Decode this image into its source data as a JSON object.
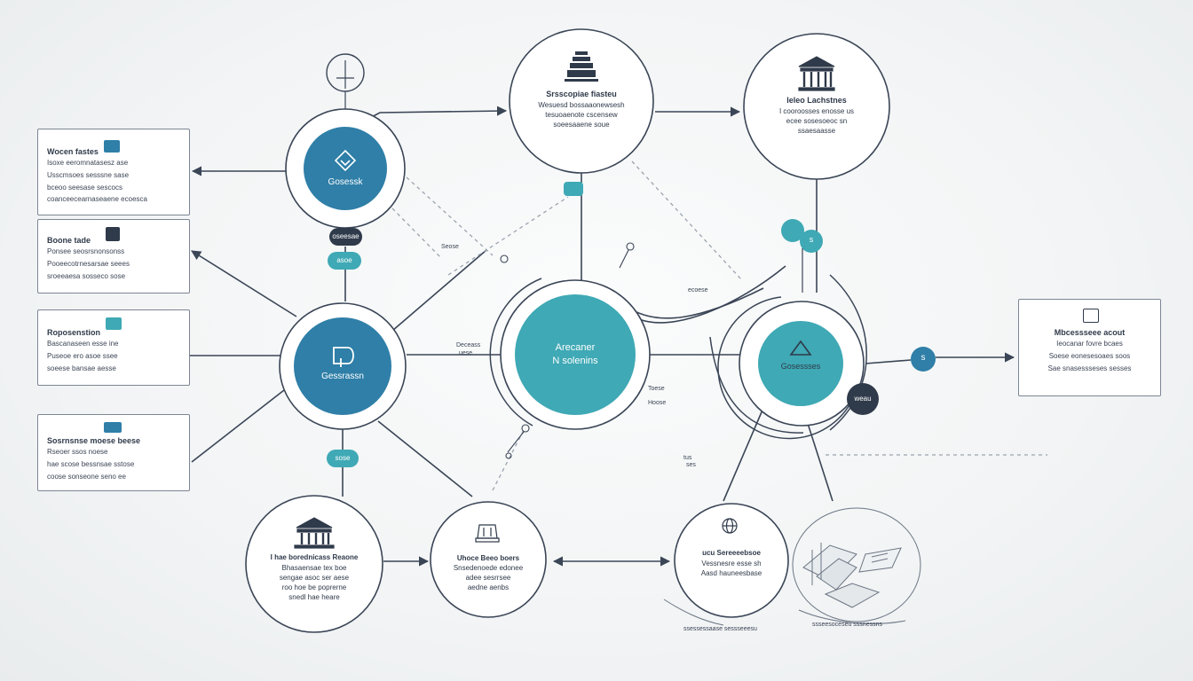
{
  "colors": {
    "navy": "#2f3a4a",
    "blue": "#2f7fa8",
    "teal": "#3fa9b5",
    "line": "#3a4556",
    "muted": "#9aa3ad"
  },
  "hubs": {
    "top_left": {
      "label": "Gosessk",
      "icon": "diamond-icon"
    },
    "mid_left": {
      "label": "Gessrassn",
      "icon": "document-icon"
    },
    "center": {
      "line1": "Arecaner",
      "line2": "N solenins"
    },
    "right": {
      "label": "Gosessses",
      "icon": "triangle-icon"
    }
  },
  "nodes": {
    "top_center": {
      "title": "Srsscopiae fiasteu",
      "line1": "Wesuesd bossaaonewsesh",
      "line2": "tesuoaenote cscensew",
      "line3": "soeesaaene soue",
      "icon": "tower-icon"
    },
    "top_right": {
      "title": "Ieleo Lachstnes",
      "line1": "I cooroosses enosse us",
      "line2": "ecee sosesoeoc sn",
      "line3": "ssaesaasse",
      "icon": "bank-icon"
    },
    "bottom_left": {
      "title": "I hae borednicass Reaone",
      "line1": "Bhasaensae tex boe",
      "line2": "sengae asoc ser aese",
      "line3": "roo hoe be poprerne",
      "line4": "snedl hae heare",
      "icon": "bank-icon"
    },
    "bottom_mid": {
      "title": "Uhoce Beeo boers",
      "line1": "Snsedenoede edonee",
      "line2": "adee sesrrsee",
      "line3": "aedne aenbs",
      "icon": "tower-icon"
    },
    "bottom_right": {
      "title": "ucu Sereeeebsoe",
      "line1": "Vessnesre esse sh",
      "line2": "Aasd hauneesbase",
      "icon": "globe-icon"
    }
  },
  "cards": {
    "left1": {
      "title": "Wocen fastes",
      "line1": "Isoxe eeromnatasesz ase",
      "line2": "Usscmsoes sesssne sase",
      "line3": "bceoo seesase sescocs",
      "line4": "coanceecearnaseaene ecoesca",
      "icon": "square"
    },
    "left2": {
      "title": "Boone tade",
      "line1": "Ponsee seosrsnonsonss",
      "line2": "Pooeecotrnesarsae seees",
      "line3": "sroeeaesa sosseco sose",
      "line4": "sonnasesroes sesssees",
      "icon": "building-icon"
    },
    "left3": {
      "title": "Roposenstion",
      "line1": "Bascanaseen esse ine",
      "line2": "Puseoe ero asoe ssee",
      "line3": "soeese bansae aesse",
      "line4": "scoee seoeso sesae bs",
      "icon": "square"
    },
    "left4": {
      "title": "Sosrnsnse moese beese",
      "line1": "Rseoer ssos noese",
      "line2": "hae scose bessnsae sstose",
      "line3": "coose sonseone seno ee",
      "icon": "square"
    },
    "right": {
      "title": "Mbcessseee acout",
      "line1": "Ieocanar fovre bcaes",
      "line2": "Soese eonesesoaes soos",
      "line3": "Sae snasessseses sesses",
      "icon": "panel-icon"
    }
  },
  "pills": {
    "under_top_hub": "oseesae",
    "teal_left": "asoe",
    "teal_mid": "sose",
    "right_dark": "weau",
    "teal_top": "s",
    "teal_pair_a": "",
    "teal_pair_b": "s"
  },
  "small_labels": {
    "a": "Seose",
    "b": "Deceass",
    "c": "uese",
    "d": "Toese",
    "e": "Hoose",
    "f": "ses",
    "g": "ecoese",
    "h": "ssessessaase  sessseeesu",
    "i": "tus",
    "j": "ssseesoceseu  sssnessns"
  }
}
